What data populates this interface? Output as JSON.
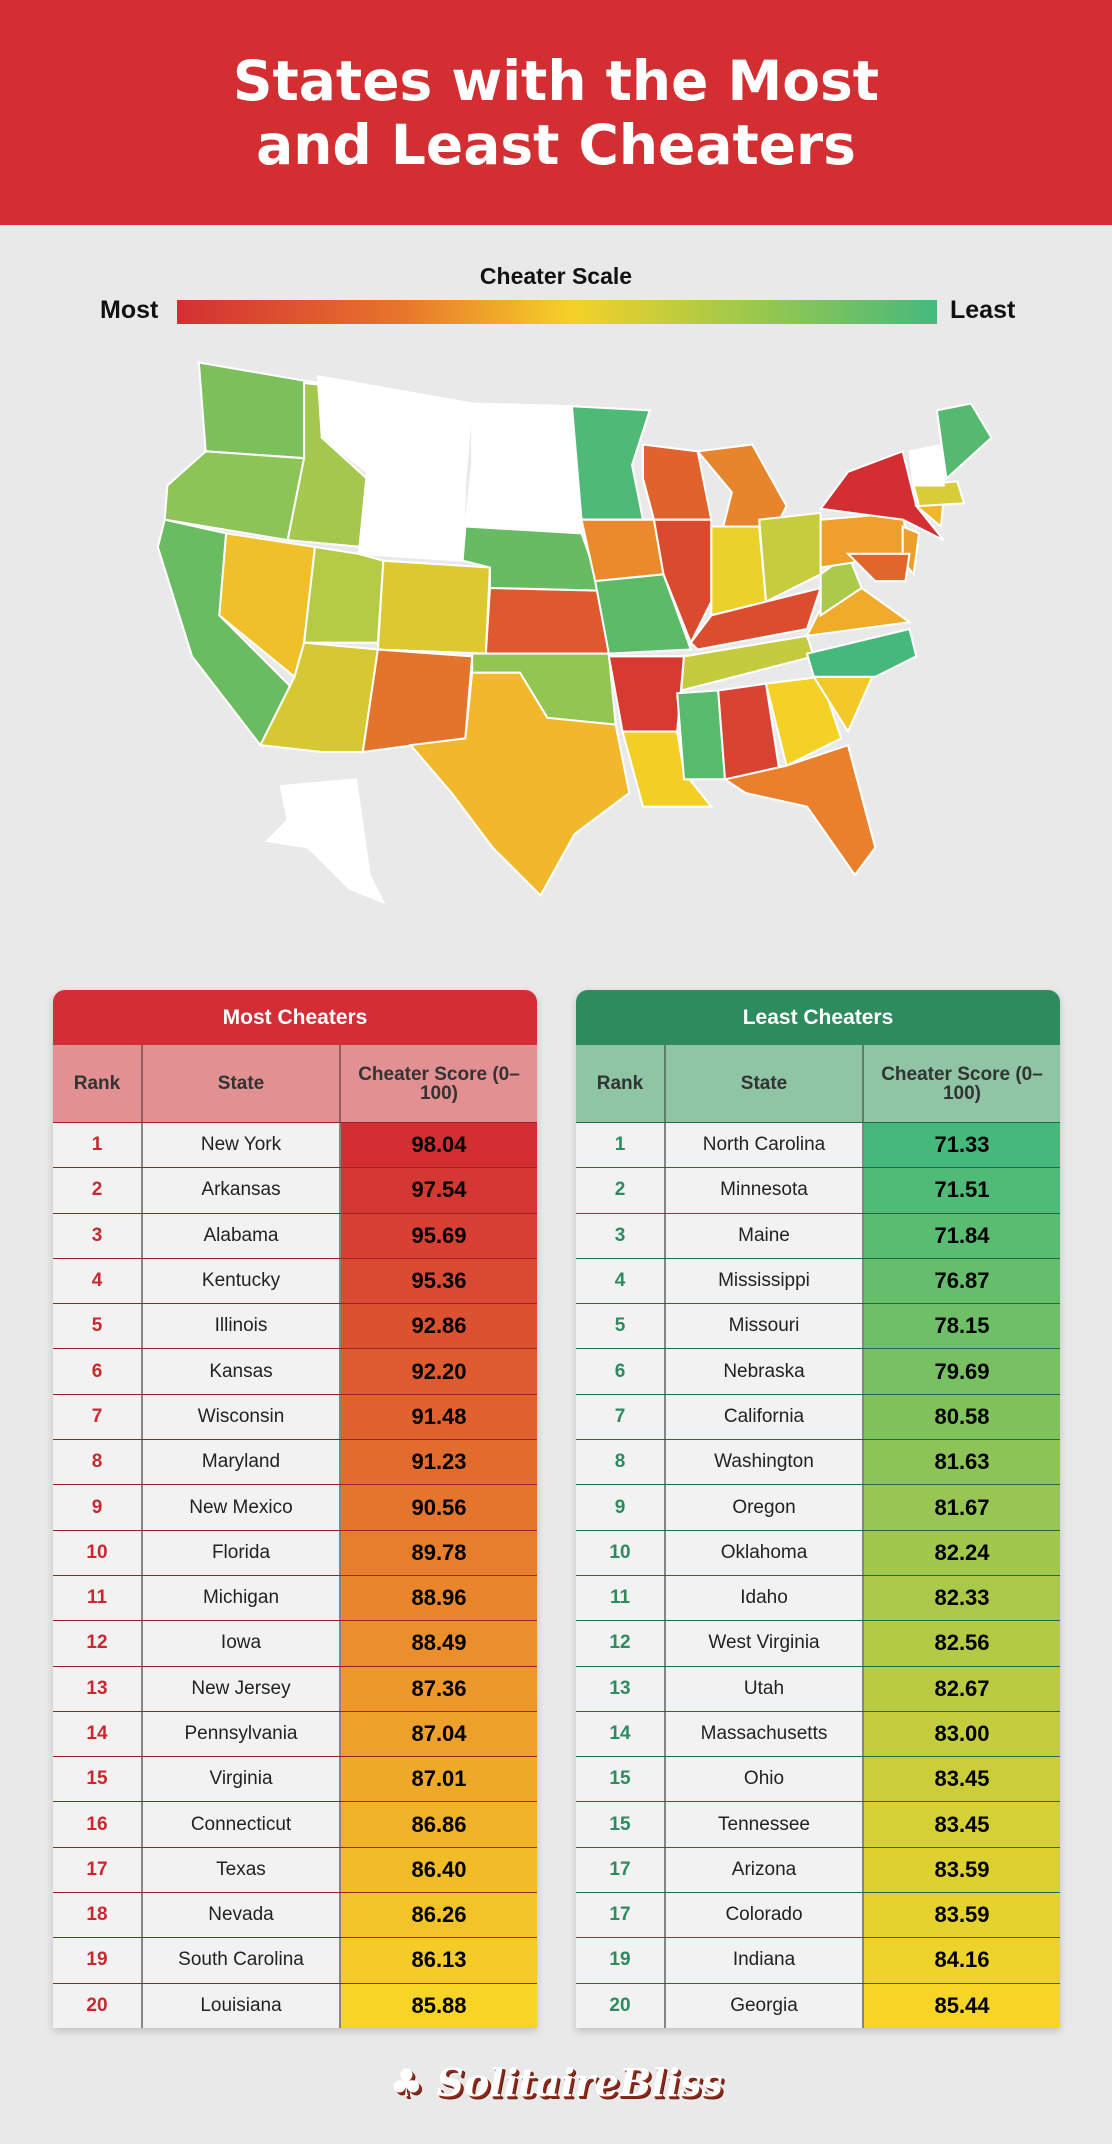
{
  "header": {
    "title": "States with the Most and Least Cheaters"
  },
  "scale": {
    "title": "Cheater Scale",
    "most": "Most",
    "least": "Least",
    "colors": [
      "#d32f33",
      "#e8762b",
      "#f5d127",
      "#9ec94a",
      "#45b97c"
    ]
  },
  "map_data": {
    "no_data_color": "#ffffff",
    "states": {
      "WA": "#7cc05c",
      "OR": "#8cc457",
      "CA": "#6abc60",
      "NV": "#f0c02a",
      "ID": "#a3c84d",
      "MT": "#ffffff",
      "WY": "#ffffff",
      "UT": "#b5cb45",
      "CO": "#ddc92f",
      "AZ": "#d6c832",
      "NM": "#e2742c",
      "ND": "#ffffff",
      "SD": "#ffffff",
      "NE": "#66bb63",
      "KS": "#de5a2e",
      "OK": "#93c552",
      "TX": "#f0b82a",
      "MN": "#4fb978",
      "IA": "#ea8a2c",
      "MO": "#5dba68",
      "AR": "#d63a31",
      "LA": "#f3cf26",
      "WI": "#e0622d",
      "IL": "#d94a2f",
      "MI": "#e7852c",
      "IN": "#ead12c",
      "OH": "#c7cc3e",
      "KY": "#db4d2f",
      "TN": "#c4cb3e",
      "MS": "#58ba6b",
      "AL": "#d84332",
      "GA": "#f4d125",
      "FL": "#ea802c",
      "SC": "#f2c928",
      "NC": "#45b97c",
      "VA": "#f0ab2b",
      "WV": "#abc94a",
      "PA": "#ef9f2b",
      "NY": "#d32f33",
      "NJ": "#eca02b",
      "MD": "#e0662d",
      "CT": "#f1b62a",
      "MA": "#d8cd38",
      "VTNH": "#ffffff",
      "ME": "#55b96f",
      "AK": "#ffffff"
    }
  },
  "most_table": {
    "title": "Most Cheaters",
    "columns": [
      "Rank",
      "State",
      "Cheater Score (0–100)"
    ],
    "rows": [
      [
        "1",
        "New York",
        "98.04"
      ],
      [
        "2",
        "Arkansas",
        "97.54"
      ],
      [
        "3",
        "Alabama",
        "95.69"
      ],
      [
        "4",
        "Kentucky",
        "95.36"
      ],
      [
        "5",
        "Illinois",
        "92.86"
      ],
      [
        "6",
        "Kansas",
        "92.20"
      ],
      [
        "7",
        "Wisconsin",
        "91.48"
      ],
      [
        "8",
        "Maryland",
        "91.23"
      ],
      [
        "9",
        "New Mexico",
        "90.56"
      ],
      [
        "10",
        "Florida",
        "89.78"
      ],
      [
        "11",
        "Michigan",
        "88.96"
      ],
      [
        "12",
        "Iowa",
        "88.49"
      ],
      [
        "13",
        "New Jersey",
        "87.36"
      ],
      [
        "14",
        "Pennsylvania",
        "87.04"
      ],
      [
        "15",
        "Virginia",
        "87.01"
      ],
      [
        "16",
        "Connecticut",
        "86.86"
      ],
      [
        "17",
        "Texas",
        "86.40"
      ],
      [
        "18",
        "Nevada",
        "86.26"
      ],
      [
        "19",
        "South Carolina",
        "86.13"
      ],
      [
        "20",
        "Louisiana",
        "85.88"
      ]
    ],
    "color_start": "#d32f33",
    "color_mid": "#e8822c",
    "color_end": "#f6d526"
  },
  "least_table": {
    "title": "Least Cheaters",
    "columns": [
      "Rank",
      "State",
      "Cheater Score (0–100)"
    ],
    "rows": [
      [
        "1",
        "North Carolina",
        "71.33"
      ],
      [
        "2",
        "Minnesota",
        "71.51"
      ],
      [
        "3",
        "Maine",
        "71.84"
      ],
      [
        "4",
        "Mississippi",
        "76.87"
      ],
      [
        "5",
        "Missouri",
        "78.15"
      ],
      [
        "6",
        "Nebraska",
        "79.69"
      ],
      [
        "7",
        "California",
        "80.58"
      ],
      [
        "8",
        "Washington",
        "81.63"
      ],
      [
        "9",
        "Oregon",
        "81.67"
      ],
      [
        "10",
        "Oklahoma",
        "82.24"
      ],
      [
        "11",
        "Idaho",
        "82.33"
      ],
      [
        "12",
        "West Virginia",
        "82.56"
      ],
      [
        "13",
        "Utah",
        "82.67"
      ],
      [
        "14",
        "Massachusetts",
        "83.00"
      ],
      [
        "15",
        "Ohio",
        "83.45"
      ],
      [
        "15",
        "Tennessee",
        "83.45"
      ],
      [
        "17",
        "Arizona",
        "83.59"
      ],
      [
        "17",
        "Colorado",
        "83.59"
      ],
      [
        "19",
        "Indiana",
        "84.16"
      ],
      [
        "20",
        "Georgia",
        "85.44"
      ]
    ],
    "color_start": "#45b97c",
    "color_mid": "#a6c84a",
    "color_end": "#f6d526"
  },
  "footer": {
    "logo": "SolitaireBliss"
  }
}
